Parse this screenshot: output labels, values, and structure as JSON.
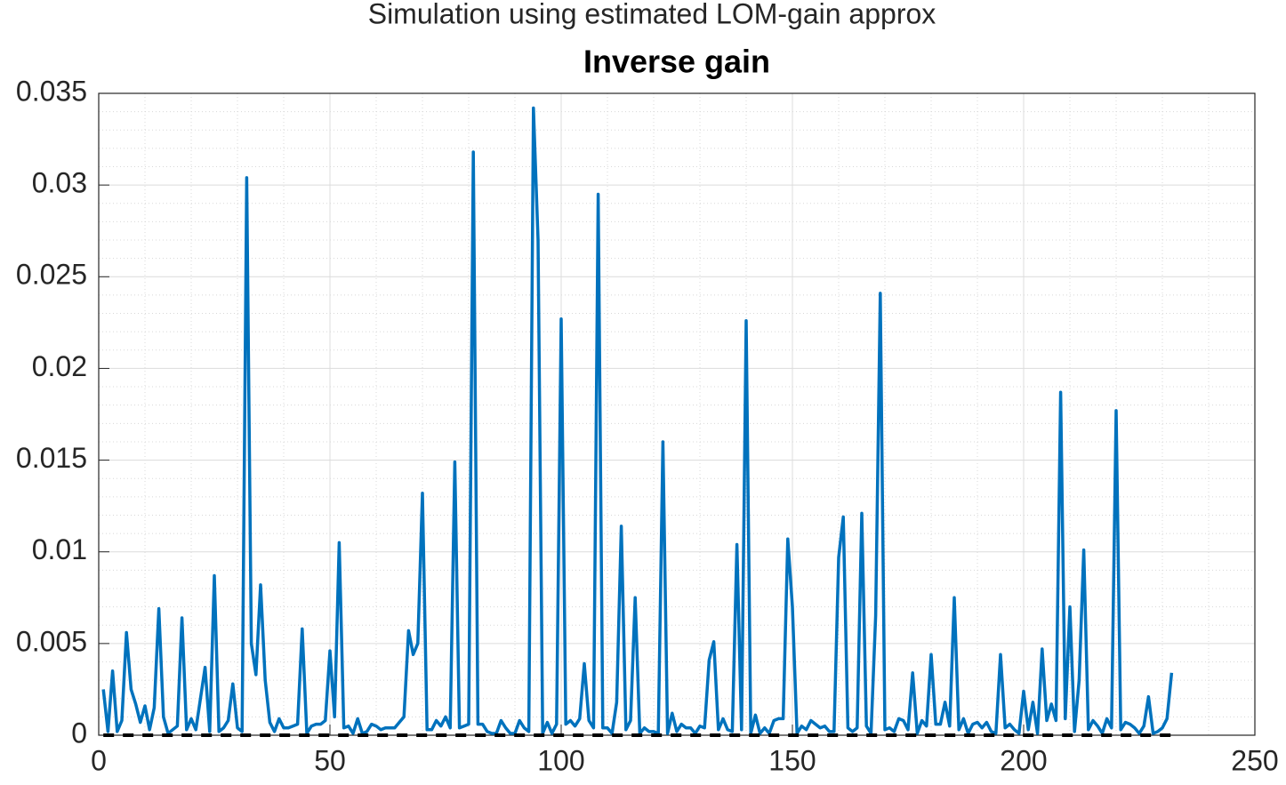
{
  "chart_data": {
    "type": "line",
    "title": "Simulation using estimated LOM-gain approx",
    "subtitle": "Inverse gain",
    "xlim": [
      0,
      250
    ],
    "xticks": [
      0,
      50,
      100,
      150,
      200,
      250
    ],
    "ylim": [
      0,
      0.035
    ],
    "yticks": [
      0,
      0.005,
      0.01,
      0.015,
      0.02,
      0.025,
      0.03,
      0.035
    ],
    "grid": true,
    "minor_grid": true,
    "series": [
      {
        "color": "#0072bd",
        "line_style": "solid",
        "x": [
          1,
          2,
          3,
          4,
          5,
          6,
          7,
          8,
          9,
          10,
          11,
          12,
          13,
          14,
          15,
          16,
          17,
          18,
          19,
          20,
          21,
          22,
          23,
          24,
          25,
          26,
          27,
          28,
          29,
          30,
          31,
          32,
          33,
          34,
          35,
          36,
          37,
          38,
          39,
          40,
          41,
          42,
          43,
          44,
          45,
          46,
          47,
          48,
          49,
          50,
          51,
          52,
          53,
          54,
          55,
          56,
          57,
          58,
          59,
          60,
          61,
          62,
          63,
          64,
          65,
          66,
          67,
          68,
          69,
          70,
          71,
          72,
          73,
          74,
          75,
          76,
          77,
          78,
          79,
          80,
          81,
          82,
          83,
          84,
          85,
          86,
          87,
          88,
          89,
          90,
          91,
          92,
          93,
          94,
          95,
          96,
          97,
          98,
          99,
          100,
          101,
          102,
          103,
          104,
          105,
          106,
          107,
          108,
          109,
          110,
          111,
          112,
          113,
          114,
          115,
          116,
          117,
          118,
          119,
          120,
          121,
          122,
          123,
          124,
          125,
          126,
          127,
          128,
          129,
          130,
          131,
          132,
          133,
          134,
          135,
          136,
          137,
          138,
          139,
          140,
          141,
          142,
          143,
          144,
          145,
          146,
          147,
          148,
          149,
          150,
          151,
          152,
          153,
          154,
          155,
          156,
          157,
          158,
          159,
          160,
          161,
          162,
          163,
          164,
          165,
          166,
          167,
          168,
          169,
          170,
          171,
          172,
          173,
          174,
          175,
          176,
          177,
          178,
          179,
          180,
          181,
          182,
          183,
          184,
          185,
          186,
          187,
          188,
          189,
          190,
          191,
          192,
          193,
          194,
          195,
          196,
          197,
          198,
          199,
          200,
          201,
          202,
          203,
          204,
          205,
          206,
          207,
          208,
          209,
          210,
          211,
          212,
          213,
          214,
          215,
          216,
          217,
          218,
          219,
          220,
          221,
          222,
          223,
          224,
          225,
          226,
          227,
          228,
          229,
          230,
          231,
          232
        ],
        "values": [
          0.0025,
          0.0002,
          0.0035,
          0.0002,
          0.0008,
          0.0056,
          0.0025,
          0.0017,
          0.0007,
          0.0016,
          0.0003,
          0.0015,
          0.0069,
          0.001,
          0.0001,
          0.0003,
          0.0005,
          0.0064,
          0.0003,
          0.0009,
          0.0003,
          0.002,
          0.0037,
          0.0002,
          0.0087,
          0.0002,
          0.0004,
          0.0008,
          0.0028,
          0.0004,
          0.0002,
          0.0304,
          0.005,
          0.0033,
          0.0082,
          0.003,
          0.0007,
          0.0002,
          0.0009,
          0.0004,
          0.0004,
          0.0005,
          0.0006,
          0.0058,
          0.0001,
          0.0005,
          0.0006,
          0.0006,
          0.0008,
          0.0046,
          0.001,
          0.0105,
          0.0004,
          0.0005,
          0.0001,
          0.0009,
          0.0001,
          0.0002,
          0.0006,
          0.0005,
          0.0003,
          0.0004,
          0.0004,
          0.0004,
          0.0007,
          0.001,
          0.0057,
          0.0044,
          0.005,
          0.0132,
          0.0003,
          0.0003,
          0.0008,
          0.0005,
          0.001,
          0.0004,
          0.0149,
          0.0004,
          0.0005,
          0.0006,
          0.0318,
          0.0006,
          0.0006,
          0.0002,
          0.0001,
          0.0001,
          0.0008,
          0.0004,
          0.0001,
          0.0001,
          0.0008,
          0.0004,
          0.0002,
          0.0342,
          0.027,
          0.0001,
          0.0007,
          0.0001,
          0.0006,
          0.0227,
          0.0006,
          0.0008,
          0.0005,
          0.0009,
          0.0039,
          0.0008,
          0.0004,
          0.0295,
          0.0004,
          0.0004,
          0.0001,
          0.0018,
          0.0114,
          0.0003,
          0.0008,
          0.0075,
          0.0001,
          0.0004,
          0.0002,
          0.0002,
          0.0001,
          0.016,
          0.0001,
          0.0012,
          0.0002,
          0.0006,
          0.0004,
          0.0004,
          0.0001,
          0.0005,
          0.0004,
          0.0041,
          0.0051,
          0.0003,
          0.0009,
          0.0003,
          0.0002,
          0.0104,
          0.0003,
          0.0226,
          0.0001,
          0.0011,
          0.0001,
          0.0004,
          0.0001,
          0.0008,
          0.0009,
          0.0009,
          0.0107,
          0.007,
          0.0001,
          0.0005,
          0.0003,
          0.0008,
          0.0006,
          0.0004,
          0.0005,
          0.0002,
          0.0002,
          0.0097,
          0.0119,
          0.0004,
          0.0002,
          0.0004,
          0.0121,
          0.0005,
          0.0001,
          0.0065,
          0.0241,
          0.0003,
          0.0004,
          0.0002,
          0.0009,
          0.0008,
          0.0003,
          0.0034,
          0.0001,
          0.0008,
          0.0005,
          0.0044,
          0.0006,
          0.0006,
          0.0018,
          0.0005,
          0.0075,
          0.0003,
          0.0009,
          0.0001,
          0.0006,
          0.0007,
          0.0004,
          0.0007,
          0.0002,
          0.0001,
          0.0044,
          0.0004,
          0.0006,
          0.0003,
          0.0001,
          0.0024,
          0.0003,
          0.0018,
          0.0001,
          0.0047,
          0.0008,
          0.0017,
          0.0008,
          0.0187,
          0.0009,
          0.007,
          0.0002,
          0.003,
          0.0101,
          0.0003,
          0.0008,
          0.0005,
          0.0001,
          0.0009,
          0.0004,
          0.0177,
          0.0003,
          0.0007,
          0.0006,
          0.0004,
          0.0001,
          0.0005,
          0.0021,
          0.0001,
          0.0002,
          0.0004,
          0.0009,
          0.0034
        ]
      },
      {
        "color": "#000000",
        "line_style": "dashed",
        "x": [
          1,
          232
        ],
        "values": [
          0,
          0
        ]
      }
    ]
  }
}
